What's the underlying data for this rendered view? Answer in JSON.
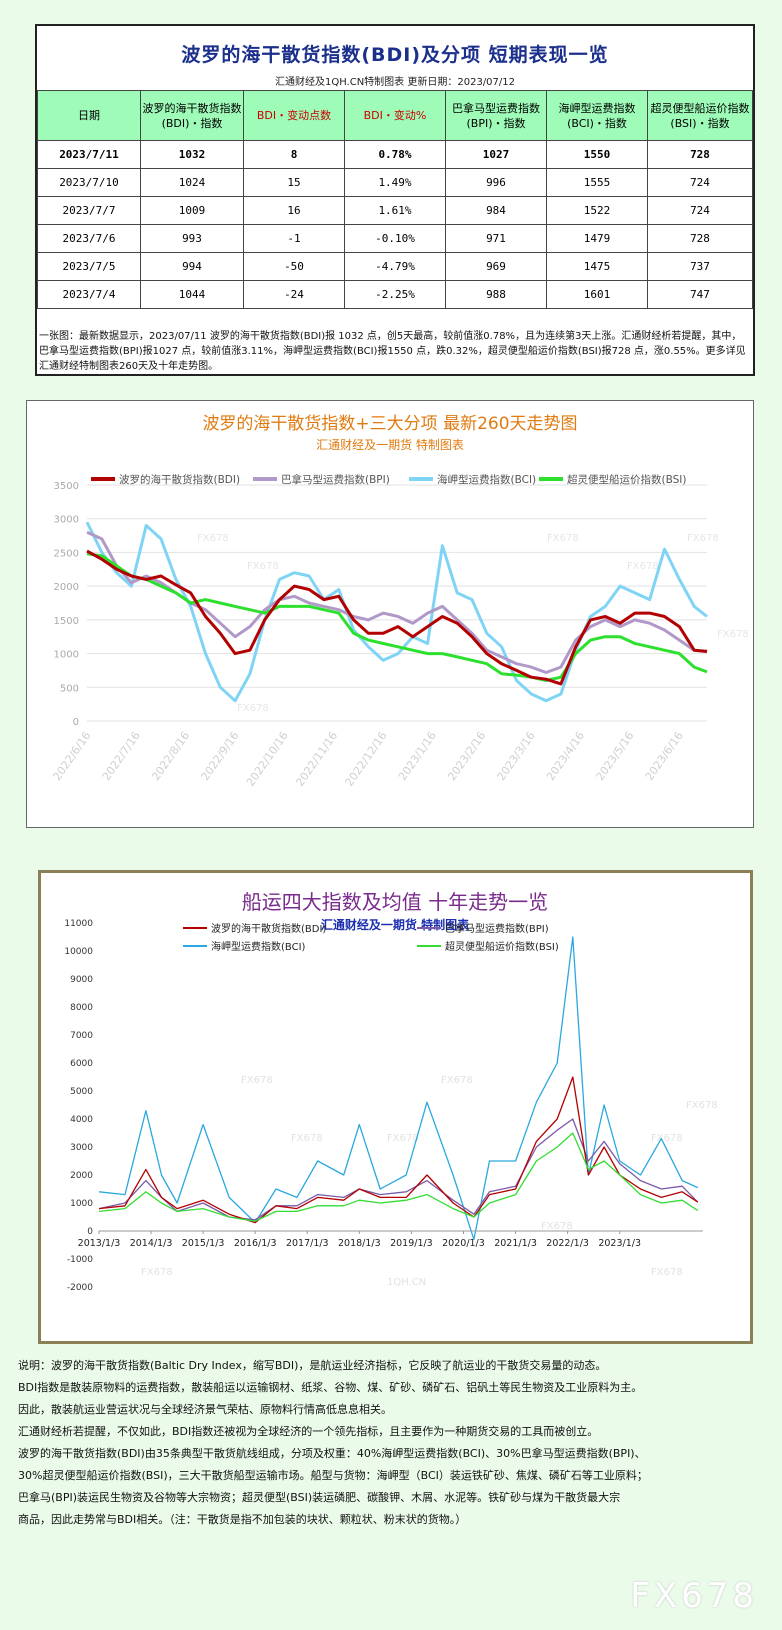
{
  "table": {
    "title": "波罗的海干散货指数(BDI)及分项 短期表现一览",
    "subtitle": "汇通财经及1QH.CN特制图表    更新日期：2023/07/12",
    "headers": [
      "日期",
      "波罗的海干散货指数(BDI)・指数",
      "BDI・变动点数",
      "BDI・变动%",
      "巴拿马型运费指数(BPI)・指数",
      "海岬型运费指数(BCI)・指数",
      "超灵便型船运价指数(BSI)・指数"
    ],
    "rows": [
      [
        "2023/7/11",
        "1032",
        "8",
        "0.78%",
        "1027",
        "1550",
        "728"
      ],
      [
        "2023/7/10",
        "1024",
        "15",
        "1.49%",
        "996",
        "1555",
        "724"
      ],
      [
        "2023/7/7",
        "1009",
        "16",
        "1.61%",
        "984",
        "1522",
        "724"
      ],
      [
        "2023/7/6",
        "993",
        "-1",
        "-0.10%",
        "971",
        "1479",
        "728"
      ],
      [
        "2023/7/5",
        "994",
        "-50",
        "-4.79%",
        "969",
        "1475",
        "737"
      ],
      [
        "2023/7/4",
        "1044",
        "-24",
        "-2.25%",
        "988",
        "1601",
        "747"
      ]
    ],
    "note": "一张图：最新数据显示，2023/07/11 波罗的海干散货指数(BDI)报 1032 点，创5天最高，较前值涨0.78%，且为连续第3天上涨。汇通财经析若提醒，其中，巴拿马型运费指数(BPI)报1027 点，较前值涨3.11%，海岬型运费指数(BCI)报1550 点，跌0.32%，超灵便型船运价指数(BSI)报728 点，涨0.55%。更多详见汇通财经特制图表260天及十年走势图。"
  },
  "chart_data": [
    {
      "type": "line",
      "title": "波罗的海干散货指数+三大分项  最新260天走势图",
      "subtitle": "汇通财经及一期货  特制图表",
      "ylim": [
        0,
        3500
      ],
      "yticks": [
        0,
        500,
        1000,
        1500,
        2000,
        2500,
        3000,
        3500
      ],
      "xticks": [
        "2022/6/16",
        "2022/7/16",
        "2022/8/16",
        "2022/9/16",
        "2022/10/16",
        "2022/11/16",
        "2022/12/16",
        "2023/1/16",
        "2023/2/16",
        "2023/3/16",
        "2023/4/16",
        "2023/5/16",
        "2023/6/16"
      ],
      "grid": true,
      "legend": "top",
      "watermark": "FX678",
      "series": [
        {
          "name": "波罗的海干散货指数(BDI)",
          "color": "#b30000",
          "x": [
            0,
            0.3,
            0.6,
            0.9,
            1.2,
            1.5,
            1.8,
            2.1,
            2.4,
            2.7,
            3.0,
            3.3,
            3.6,
            3.9,
            4.2,
            4.5,
            4.8,
            5.1,
            5.4,
            5.7,
            6.0,
            6.3,
            6.6,
            6.9,
            7.2,
            7.5,
            7.8,
            8.1,
            8.4,
            8.7,
            9.0,
            9.3,
            9.6,
            9.9,
            10.2,
            10.5,
            10.8,
            11.1,
            11.4,
            11.7,
            12.0,
            12.3,
            12.56
          ],
          "values": [
            2520,
            2400,
            2250,
            2150,
            2100,
            2150,
            2020,
            1900,
            1550,
            1300,
            1000,
            1050,
            1500,
            1800,
            2000,
            1950,
            1800,
            1850,
            1500,
            1300,
            1300,
            1400,
            1250,
            1400,
            1550,
            1450,
            1250,
            1000,
            850,
            750,
            650,
            620,
            550,
            1100,
            1500,
            1550,
            1450,
            1600,
            1600,
            1550,
            1400,
            1050,
            1032
          ]
        },
        {
          "name": "巴拿马型运费指数(BPI)",
          "color": "#b098c8",
          "x": [
            0,
            0.3,
            0.6,
            0.9,
            1.2,
            1.5,
            1.8,
            2.1,
            2.4,
            2.7,
            3.0,
            3.3,
            3.6,
            3.9,
            4.2,
            4.5,
            4.8,
            5.1,
            5.4,
            5.7,
            6.0,
            6.3,
            6.6,
            6.9,
            7.2,
            7.5,
            7.8,
            8.1,
            8.4,
            8.7,
            9.0,
            9.3,
            9.6,
            9.9,
            10.2,
            10.5,
            10.8,
            11.1,
            11.4,
            11.7,
            12.0,
            12.3,
            12.56
          ],
          "values": [
            2800,
            2700,
            2300,
            2050,
            2150,
            2050,
            1900,
            1750,
            1650,
            1450,
            1250,
            1400,
            1650,
            1800,
            1850,
            1750,
            1700,
            1650,
            1550,
            1500,
            1600,
            1550,
            1450,
            1600,
            1700,
            1500,
            1300,
            1050,
            950,
            850,
            800,
            720,
            800,
            1200,
            1400,
            1500,
            1400,
            1500,
            1450,
            1350,
            1200,
            1050,
            1027
          ]
        },
        {
          "name": "海岬型运费指数(BCI)",
          "color": "#7fd4f5",
          "x": [
            0,
            0.3,
            0.6,
            0.9,
            1.2,
            1.5,
            1.8,
            2.1,
            2.4,
            2.7,
            3.0,
            3.3,
            3.6,
            3.9,
            4.2,
            4.5,
            4.8,
            5.1,
            5.4,
            5.7,
            6.0,
            6.3,
            6.6,
            6.9,
            7.2,
            7.5,
            7.8,
            8.1,
            8.4,
            8.7,
            9.0,
            9.3,
            9.6,
            9.9,
            10.2,
            10.5,
            10.8,
            11.1,
            11.4,
            11.7,
            12.0,
            12.3,
            12.56
          ],
          "values": [
            2950,
            2500,
            2200,
            2000,
            2900,
            2700,
            2100,
            1700,
            1000,
            500,
            300,
            700,
            1500,
            2100,
            2200,
            2150,
            1800,
            1950,
            1350,
            1100,
            900,
            1000,
            1250,
            1150,
            2600,
            1900,
            1800,
            1300,
            1100,
            600,
            400,
            300,
            400,
            1050,
            1550,
            1700,
            2000,
            1900,
            1800,
            2550,
            2100,
            1700,
            1550
          ]
        },
        {
          "name": "超灵便型船运价指数(BSI)",
          "color": "#2ee02e",
          "x": [
            0,
            0.3,
            0.6,
            0.9,
            1.2,
            1.5,
            1.8,
            2.1,
            2.4,
            2.7,
            3.0,
            3.3,
            3.6,
            3.9,
            4.2,
            4.5,
            4.8,
            5.1,
            5.4,
            5.7,
            6.0,
            6.3,
            6.6,
            6.9,
            7.2,
            7.5,
            7.8,
            8.1,
            8.4,
            8.7,
            9.0,
            9.3,
            9.6,
            9.9,
            10.2,
            10.5,
            10.8,
            11.1,
            11.4,
            11.7,
            12.0,
            12.3,
            12.56
          ],
          "values": [
            2480,
            2450,
            2300,
            2150,
            2100,
            2000,
            1900,
            1750,
            1800,
            1750,
            1700,
            1650,
            1600,
            1700,
            1700,
            1700,
            1650,
            1600,
            1300,
            1200,
            1150,
            1100,
            1050,
            1000,
            1000,
            950,
            900,
            850,
            700,
            680,
            650,
            600,
            650,
            1000,
            1200,
            1250,
            1250,
            1150,
            1100,
            1050,
            1000,
            800,
            728
          ]
        }
      ]
    },
    {
      "type": "line",
      "title": "船运四大指数及均值 十年走势一览",
      "subtitle": "汇通财经及一期货 特制图表",
      "ylim": [
        -2000,
        11000
      ],
      "yticks": [
        -2000,
        -1000,
        0,
        1000,
        2000,
        3000,
        4000,
        5000,
        6000,
        7000,
        8000,
        9000,
        10000,
        11000
      ],
      "xticks": [
        "2013/1/3",
        "2014/1/3",
        "2015/1/3",
        "2016/1/3",
        "2017/1/3",
        "2018/1/3",
        "2019/1/3",
        "2020/1/3",
        "2021/1/3",
        "2022/1/3",
        "2023/1/3"
      ],
      "grid": false,
      "legend": "top",
      "watermarks": [
        "FX678",
        "1QH.CN"
      ],
      "series": [
        {
          "name": "波罗的海干散货指数(BDI)",
          "color": "#b30000",
          "x": [
            0,
            0.5,
            0.9,
            1.2,
            1.5,
            2.0,
            2.5,
            3.0,
            3.4,
            3.8,
            4.2,
            4.7,
            5.0,
            5.4,
            5.9,
            6.3,
            6.8,
            7.2,
            7.5,
            8.0,
            8.4,
            8.8,
            9.1,
            9.4,
            9.7,
            10.0,
            10.4,
            10.8,
            11.2,
            11.5
          ],
          "values": [
            800,
            900,
            2200,
            1200,
            800,
            1100,
            600,
            300,
            900,
            800,
            1200,
            1100,
            1500,
            1200,
            1200,
            2000,
            1000,
            500,
            1300,
            1500,
            3200,
            4000,
            5500,
            2000,
            3000,
            2000,
            1500,
            1200,
            1400,
            1032
          ]
        },
        {
          "name": "巴拿马型运费指数(BPI)",
          "color": "#7a5aa8",
          "x": [
            0,
            0.5,
            0.9,
            1.2,
            1.5,
            2.0,
            2.5,
            3.0,
            3.4,
            3.8,
            4.2,
            4.7,
            5.0,
            5.4,
            5.9,
            6.3,
            6.8,
            7.2,
            7.5,
            8.0,
            8.4,
            8.8,
            9.1,
            9.4,
            9.7,
            10.0,
            10.4,
            10.8,
            11.2,
            11.5
          ],
          "values": [
            800,
            1000,
            1800,
            1200,
            700,
            1000,
            500,
            400,
            900,
            900,
            1300,
            1200,
            1500,
            1300,
            1400,
            1800,
            1100,
            600,
            1400,
            1600,
            3000,
            3600,
            4000,
            2500,
            3200,
            2400,
            1800,
            1500,
            1600,
            1027
          ]
        },
        {
          "name": "海岬型运费指数(BCI)",
          "color": "#2aa8e0",
          "x": [
            0,
            0.5,
            0.9,
            1.2,
            1.5,
            2.0,
            2.5,
            3.0,
            3.4,
            3.8,
            4.2,
            4.7,
            5.0,
            5.4,
            5.9,
            6.3,
            6.8,
            7.2,
            7.5,
            8.0,
            8.4,
            8.8,
            9.1,
            9.4,
            9.7,
            10.0,
            10.4,
            10.8,
            11.2,
            11.5
          ],
          "values": [
            1400,
            1300,
            4300,
            2000,
            1000,
            3800,
            1200,
            300,
            1500,
            1200,
            2500,
            2000,
            3800,
            1500,
            2000,
            4600,
            2000,
            -300,
            2500,
            2500,
            4600,
            6000,
            10500,
            2000,
            4500,
            2500,
            2000,
            3300,
            1800,
            1550
          ]
        },
        {
          "name": "超灵便型船运价指数(BSI)",
          "color": "#33dd33",
          "x": [
            0,
            0.5,
            0.9,
            1.2,
            1.5,
            2.0,
            2.5,
            3.0,
            3.4,
            3.8,
            4.2,
            4.7,
            5.0,
            5.4,
            5.9,
            6.3,
            6.8,
            7.2,
            7.5,
            8.0,
            8.4,
            8.8,
            9.1,
            9.4,
            9.7,
            10.0,
            10.4,
            10.8,
            11.2,
            11.5
          ],
          "values": [
            700,
            800,
            1400,
            1000,
            700,
            800,
            500,
            350,
            700,
            700,
            900,
            900,
            1100,
            1000,
            1100,
            1300,
            800,
            500,
            1000,
            1300,
            2500,
            3000,
            3500,
            2200,
            2500,
            2000,
            1300,
            1000,
            1100,
            728
          ]
        }
      ]
    }
  ],
  "explain": [
    "说明：波罗的海干散货指数(Baltic Dry Index，缩写BDI)，是航运业经济指标，它反映了航运业的干散货交易量的动态。",
    "BDI指数是散装原物料的运费指数，散装船运以运输钢材、纸浆、谷物、煤、矿砂、磷矿石、铝矾土等民生物资及工业原料为主。",
    "因此，散装航运业营运状况与全球经济景气荣枯、原物料行情高低息息相关。",
    "汇通财经析若提醒，不仅如此，BDI指数还被视为全球经济的一个领先指标，且主要作为一种期货交易的工具而被创立。",
    "波罗的海干散货指数(BDI)由35条典型干散货航线组成，分项及权重：40%海岬型运费指数(BCI)、30%巴拿马型运费指数(BPI)、",
    "30%超灵便型船运价指数(BSI)，三大干散货船型运输市场。船型与货物：海岬型（BCI）装运铁矿砂、焦煤、磷矿石等工业原料；",
    "巴拿马(BPI)装运民生物资及谷物等大宗物资；超灵便型(BSI)装运磷肥、碳酸钾、木屑、水泥等。铁矿砂与煤为干散货最大宗",
    "商品，因此走势常与BDI相关。（注：干散货是指不加包装的块状、颗粒状、粉末状的货物。）"
  ],
  "logo": "FX678"
}
